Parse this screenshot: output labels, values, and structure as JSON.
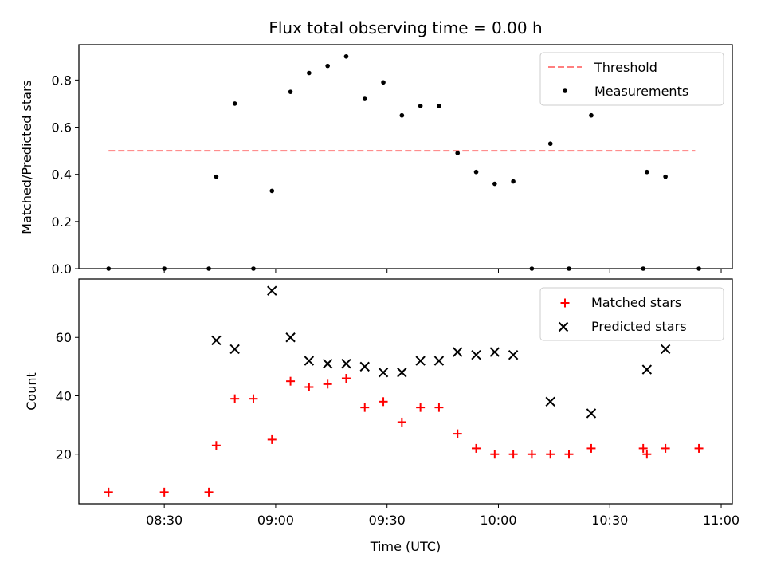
{
  "figure": {
    "title": "Flux total observing time = 0.00 h",
    "xlabel": "Time (UTC)"
  },
  "chart_data": [
    {
      "type": "scatter",
      "panel": "top",
      "ylabel": "Matched/Predicted stars",
      "xlim": [
        "08:07",
        "11:03"
      ],
      "ylim": [
        0,
        0.95
      ],
      "y_ticks": [
        0.0,
        0.2,
        0.4,
        0.6,
        0.8
      ],
      "y_tick_labels": [
        "0.0",
        "0.2",
        "0.4",
        "0.6",
        "0.8"
      ],
      "grid": false,
      "legend": "upper right",
      "threshold": {
        "name": "Threshold",
        "y": 0.5,
        "x_range": [
          "08:15",
          "10:53"
        ],
        "color": "#ff7f7f",
        "style": "dashed"
      },
      "series": [
        {
          "name": "Measurements",
          "color": "#000000",
          "marker": "dot",
          "points": [
            [
              "08:15",
              0.0
            ],
            [
              "08:30",
              0.0
            ],
            [
              "08:42",
              0.0
            ],
            [
              "08:44",
              0.39
            ],
            [
              "08:49",
              0.7
            ],
            [
              "08:54",
              0.0
            ],
            [
              "08:59",
              0.33
            ],
            [
              "09:04",
              0.75
            ],
            [
              "09:09",
              0.83
            ],
            [
              "09:14",
              0.86
            ],
            [
              "09:19",
              0.9
            ],
            [
              "09:24",
              0.72
            ],
            [
              "09:29",
              0.79
            ],
            [
              "09:34",
              0.65
            ],
            [
              "09:39",
              0.69
            ],
            [
              "09:44",
              0.69
            ],
            [
              "09:49",
              0.49
            ],
            [
              "09:54",
              0.41
            ],
            [
              "09:59",
              0.36
            ],
            [
              "10:04",
              0.37
            ],
            [
              "10:09",
              0.0
            ],
            [
              "10:14",
              0.53
            ],
            [
              "10:19",
              0.0
            ],
            [
              "10:25",
              0.65
            ],
            [
              "10:39",
              0.0
            ],
            [
              "10:40",
              0.41
            ],
            [
              "10:45",
              0.39
            ],
            [
              "10:54",
              0.0
            ]
          ]
        }
      ]
    },
    {
      "type": "scatter",
      "panel": "bottom",
      "ylabel": "Count",
      "xlim": [
        "08:07",
        "11:03"
      ],
      "ylim": [
        3,
        80
      ],
      "y_ticks": [
        20,
        40,
        60
      ],
      "y_tick_labels": [
        "20",
        "40",
        "60"
      ],
      "x_ticks": [
        "08:30",
        "09:00",
        "09:30",
        "10:00",
        "10:30",
        "11:00"
      ],
      "x_tick_labels": [
        "08:30",
        "09:00",
        "09:30",
        "10:00",
        "10:30",
        "11:00"
      ],
      "grid": false,
      "legend": "upper right",
      "series": [
        {
          "name": "Matched stars",
          "color": "#ff0000",
          "marker": "plus",
          "points": [
            [
              "08:15",
              7
            ],
            [
              "08:30",
              7
            ],
            [
              "08:42",
              7
            ],
            [
              "08:44",
              23
            ],
            [
              "08:49",
              39
            ],
            [
              "08:54",
              39
            ],
            [
              "08:59",
              25
            ],
            [
              "09:04",
              45
            ],
            [
              "09:09",
              43
            ],
            [
              "09:14",
              44
            ],
            [
              "09:19",
              46
            ],
            [
              "09:24",
              36
            ],
            [
              "09:29",
              38
            ],
            [
              "09:34",
              31
            ],
            [
              "09:39",
              36
            ],
            [
              "09:44",
              36
            ],
            [
              "09:49",
              27
            ],
            [
              "09:54",
              22
            ],
            [
              "09:59",
              20
            ],
            [
              "10:04",
              20
            ],
            [
              "10:09",
              20
            ],
            [
              "10:14",
              20
            ],
            [
              "10:19",
              20
            ],
            [
              "10:25",
              22
            ],
            [
              "10:39",
              22
            ],
            [
              "10:40",
              20
            ],
            [
              "10:45",
              22
            ],
            [
              "10:54",
              22
            ]
          ]
        },
        {
          "name": "Predicted stars",
          "color": "#000000",
          "marker": "x",
          "points": [
            [
              "08:44",
              59
            ],
            [
              "08:49",
              56
            ],
            [
              "08:59",
              76
            ],
            [
              "09:04",
              60
            ],
            [
              "09:09",
              52
            ],
            [
              "09:14",
              51
            ],
            [
              "09:19",
              51
            ],
            [
              "09:24",
              50
            ],
            [
              "09:29",
              48
            ],
            [
              "09:34",
              48
            ],
            [
              "09:39",
              52
            ],
            [
              "09:44",
              52
            ],
            [
              "09:49",
              55
            ],
            [
              "09:54",
              54
            ],
            [
              "09:59",
              55
            ],
            [
              "10:04",
              54
            ],
            [
              "10:14",
              38
            ],
            [
              "10:25",
              34
            ],
            [
              "10:40",
              49
            ],
            [
              "10:45",
              56
            ]
          ]
        }
      ]
    }
  ]
}
